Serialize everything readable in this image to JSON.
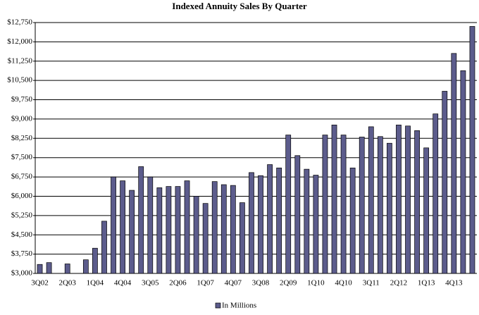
{
  "chart_data": {
    "type": "bar",
    "title": "Indexed Annuity  Sales By Quarter",
    "categories": [
      "3Q02",
      null,
      null,
      "2Q03",
      null,
      null,
      "1Q04",
      null,
      null,
      "4Q04",
      null,
      null,
      "3Q05",
      null,
      null,
      "2Q06",
      null,
      null,
      "1Q07",
      null,
      null,
      "4Q07",
      null,
      null,
      "3Q08",
      null,
      null,
      "2Q09",
      null,
      null,
      "1Q10",
      null,
      null,
      "4Q10",
      null,
      null,
      "3Q11",
      null,
      null,
      "2Q12",
      null,
      null,
      "1Q13",
      null,
      null,
      "4Q13",
      null,
      null
    ],
    "series": [
      {
        "name": "In Millions",
        "color": "#5c5c8c",
        "values": [
          3350,
          3420,
          null,
          3370,
          null,
          3530,
          3980,
          5030,
          6750,
          6600,
          6230,
          7150,
          6750,
          6330,
          6380,
          6380,
          6600,
          6000,
          5720,
          6570,
          6450,
          6420,
          5750,
          6920,
          6800,
          7230,
          7100,
          8380,
          7580,
          7050,
          6820,
          8380,
          8770,
          8380,
          7100,
          8300,
          8700,
          8320,
          8060,
          8770,
          8730,
          8550,
          7880,
          9200,
          10080,
          11550,
          10880,
          12600
        ]
      }
    ],
    "ylim": [
      3000,
      12750
    ],
    "yticks": [
      {
        "value": 3000,
        "label": "$3,000"
      },
      {
        "value": 3750,
        "label": "$3,750"
      },
      {
        "value": 4500,
        "label": "$4,500"
      },
      {
        "value": 5250,
        "label": "$5,250"
      },
      {
        "value": 6000,
        "label": "$6,000"
      },
      {
        "value": 6750,
        "label": "$6,750"
      },
      {
        "value": 7500,
        "label": "$7,500"
      },
      {
        "value": 8250,
        "label": "$8,250"
      },
      {
        "value": 9000,
        "label": "$9,000"
      },
      {
        "value": 9750,
        "label": "$9,750"
      },
      {
        "value": 10500,
        "label": "$10,500"
      },
      {
        "value": 11250,
        "label": "$11,250"
      },
      {
        "value": 12000,
        "label": "$12,000"
      },
      {
        "value": 12750,
        "label": "$12,750"
      }
    ],
    "grid": true,
    "legend": "bottom"
  }
}
